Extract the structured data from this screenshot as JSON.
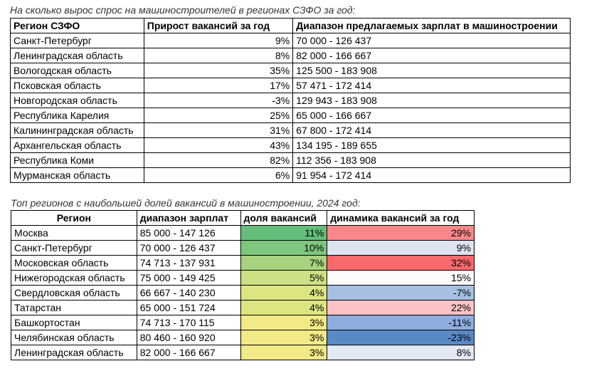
{
  "table1": {
    "caption": "На сколько вырос спрос на машиностроителей в регионах СЗФО за год:",
    "headers": [
      "Регион СЗФО",
      "Прирост вакансий за год",
      "Диапазон предлагаемых зарплат в машиностроении"
    ],
    "rows": [
      [
        "Санкт-Петербург",
        "9%",
        "70 000 - 126 437"
      ],
      [
        "Ленинградская область",
        "8%",
        "82 000 - 166 667"
      ],
      [
        "Вологодская область",
        "35%",
        "125 500 - 183 908"
      ],
      [
        "Псковская область",
        "17%",
        "57 471 - 172 414"
      ],
      [
        "Новгородская область",
        "-3%",
        "129 943 - 183 908"
      ],
      [
        "Республика Карелия",
        "25%",
        "65 000 - 166 667"
      ],
      [
        "Калининградская область",
        "31%",
        "67 800 - 172 414"
      ],
      [
        "Архангельская область",
        "43%",
        "134 195 - 189 655"
      ],
      [
        "Республика Коми",
        "82%",
        "112 356 - 183 908"
      ],
      [
        "Мурманская область",
        "6%",
        "91 954 - 172 414"
      ]
    ]
  },
  "table2": {
    "caption": "Топ регионов с наибольшей долей вакансий в машиностроении, 2024 год:",
    "headers": [
      "Регион",
      "диапазон зарплат",
      "доля вакансий",
      "динамика вакансий за год"
    ],
    "rows": [
      [
        "Москва",
        "85 000 - 147 126",
        "11%",
        "29%"
      ],
      [
        "Санкт-Петербург",
        "70 000 - 126 437",
        "10%",
        "9%"
      ],
      [
        "Московская область",
        "74 713 - 137 931",
        "7%",
        "32%"
      ],
      [
        "Нижегородская область",
        "75 000 - 149 425",
        "5%",
        "15%"
      ],
      [
        "Свердловская область",
        "66 667 - 140 230",
        "4%",
        "-7%"
      ],
      [
        "Татарстан",
        "65 000 - 151 724",
        "4%",
        "22%"
      ],
      [
        "Башкортостан",
        "74 713 - 170 115",
        "3%",
        "-11%"
      ],
      [
        "Челябинская область",
        "80 460 - 160 920",
        "3%",
        "-23%"
      ],
      [
        "Ленинградская область",
        "82 000 - 166 667",
        "3%",
        "8%"
      ]
    ],
    "share_colors": [
      "#63be7b",
      "#7fc77e",
      "#a9d27f",
      "#cde083",
      "#dde583",
      "#dde583",
      "#f2ea86",
      "#f2ea86",
      "#f2ea86"
    ],
    "dynamics_colors": [
      "#f9878a",
      "#dde3f1",
      "#f8696b",
      "#fbfbfb",
      "#a6bfe3",
      "#fbc3c5",
      "#8eadde",
      "#5a8ac6",
      "#e2e8f4"
    ]
  }
}
